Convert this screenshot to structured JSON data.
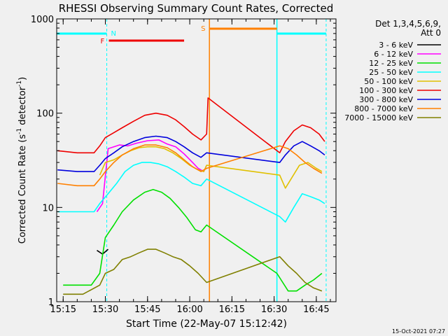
{
  "chart_data": {
    "type": "line",
    "title": "RHESSI Observing Summary Count Rates, Corrected",
    "xlabel": "Start Time (22-May-07 15:12:42)",
    "ylabel": "Corrected Count Rate (s⁻¹ detector⁻¹)",
    "ylabel_main": "Corrected Count Rate (s",
    "ylabel_sup1": "-1",
    "ylabel_mid": " detector",
    "ylabel_sup2": "-1",
    "ylabel_end": ")",
    "yscale": "log",
    "ylim": [
      1,
      1000
    ],
    "xlim": [
      "15:12:42",
      "16:52:00"
    ],
    "x_ticks": [
      "15:15",
      "15:30",
      "15:45",
      "16:00",
      "16:15",
      "16:30",
      "16:45"
    ],
    "y_ticks": [
      "1",
      "10",
      "100",
      "1000"
    ],
    "legend_header": [
      "Det 1,3,4,5,6,9,",
      "Att 0"
    ],
    "footer_date": "15-Oct-2021 07:27",
    "annotations": {
      "night_label": "N",
      "flare_label": "F",
      "saa_label": "S",
      "night_intervals": [
        [
          "15:12:42",
          "15:30:30"
        ],
        [
          "16:31:00",
          "16:48:30"
        ]
      ],
      "flare_interval": [
        "15:30:30",
        "15:58:00"
      ],
      "saa_interval": [
        "16:07:00",
        "16:31:00"
      ]
    },
    "series": [
      {
        "name": "3 - 6 keV",
        "color": "#000000",
        "x": [
          "15:27",
          "15:29",
          "15:31"
        ],
        "y": [
          3.5,
          3.2,
          3.6
        ]
      },
      {
        "name": "6 - 12 keV",
        "color": "#ff00ff",
        "x": [
          "15:27",
          "15:29",
          "15:31",
          "15:33",
          "15:35",
          "15:38",
          "15:41",
          "15:45",
          "15:49",
          "15:52",
          "15:55",
          "15:58",
          "16:01",
          "16:03",
          "16:05",
          "16:06"
        ],
        "y": [
          9,
          11,
          42,
          44,
          46,
          45,
          48,
          51,
          52,
          47,
          44,
          37,
          30,
          26,
          24,
          28
        ]
      },
      {
        "name": "12 - 25 keV",
        "color": "#00e000",
        "x": [
          "15:15",
          "15:20",
          "15:25",
          "15:28",
          "15:30",
          "15:33",
          "15:36",
          "15:40",
          "15:44",
          "15:47",
          "15:50",
          "15:53",
          "15:56",
          "15:59",
          "16:02",
          "16:04",
          "16:06",
          "16:31",
          "16:35",
          "16:38",
          "16:41",
          "16:44",
          "16:47"
        ],
        "y": [
          1.5,
          1.5,
          1.5,
          2.0,
          4.8,
          6.5,
          9.0,
          12.0,
          14.5,
          15.5,
          14.5,
          12.5,
          10.0,
          7.8,
          5.8,
          5.5,
          6.5,
          2.0,
          1.3,
          1.3,
          1.5,
          1.7,
          2.0
        ]
      },
      {
        "name": "25 - 50 keV",
        "color": "#00ffff",
        "x": [
          "15:13",
          "15:20",
          "15:26",
          "15:28",
          "15:31",
          "15:34",
          "15:37",
          "15:40",
          "15:43",
          "15:46",
          "15:49",
          "15:52",
          "15:55",
          "15:58",
          "16:01",
          "16:04",
          "16:06",
          "16:32",
          "16:34",
          "16:37",
          "16:40",
          "16:43",
          "16:46",
          "16:48"
        ],
        "y": [
          9,
          9,
          9,
          11,
          14,
          18,
          24,
          28,
          30,
          30,
          29,
          27,
          24,
          21,
          18,
          17,
          20,
          8,
          7,
          10,
          14,
          13,
          12,
          11
        ]
      },
      {
        "name": "50 - 100 keV",
        "color": "#e0c000",
        "x": [
          "15:28",
          "15:30",
          "15:33",
          "15:36",
          "15:39",
          "15:42",
          "15:45",
          "15:48",
          "15:51",
          "15:54",
          "15:57",
          "16:00",
          "16:03",
          "16:05",
          "16:06",
          "16:32",
          "16:34",
          "16:36",
          "16:39",
          "16:42",
          "16:45",
          "16:47"
        ],
        "y": [
          22,
          30,
          32,
          36,
          40,
          43,
          44,
          44,
          42,
          38,
          33,
          28,
          25,
          24,
          28,
          22,
          16,
          20,
          28,
          30,
          26,
          24
        ]
      },
      {
        "name": "100 - 300 keV",
        "color": "#ee0000",
        "x": [
          "15:13",
          "15:20",
          "15:26",
          "15:28",
          "15:30",
          "15:33",
          "15:36",
          "15:40",
          "15:44",
          "15:48",
          "15:52",
          "15:55",
          "15:58",
          "16:01",
          "16:04",
          "16:06",
          "16:06.5",
          "16:32",
          "16:34",
          "16:37",
          "16:40",
          "16:43",
          "16:46",
          "16:48"
        ],
        "y": [
          40,
          38,
          38,
          45,
          55,
          62,
          70,
          82,
          95,
          100,
          95,
          85,
          72,
          60,
          52,
          60,
          145,
          38,
          50,
          65,
          75,
          70,
          60,
          50
        ]
      },
      {
        "name": "300 - 800 keV",
        "color": "#0000dd",
        "x": [
          "15:13",
          "15:20",
          "15:26",
          "15:28",
          "15:30",
          "15:33",
          "15:36",
          "15:40",
          "15:44",
          "15:48",
          "15:52",
          "15:55",
          "15:58",
          "16:01",
          "16:04",
          "16:06",
          "16:32",
          "16:34",
          "16:37",
          "16:40",
          "16:43",
          "16:46",
          "16:48"
        ],
        "y": [
          25,
          24,
          24,
          28,
          33,
          38,
          44,
          50,
          55,
          57,
          55,
          50,
          44,
          38,
          34,
          38,
          30,
          36,
          45,
          50,
          45,
          40,
          36
        ]
      },
      {
        "name": "800 - 7000 keV",
        "color": "#ff8000",
        "x": [
          "15:13",
          "15:20",
          "15:26",
          "15:28",
          "15:30",
          "15:33",
          "15:36",
          "15:40",
          "15:44",
          "15:48",
          "15:52",
          "15:55",
          "15:58",
          "16:01",
          "16:04",
          "16:06",
          "16:32",
          "16:35",
          "16:38",
          "16:41",
          "16:44",
          "16:47"
        ],
        "y": [
          18,
          17,
          17,
          20,
          24,
          30,
          36,
          42,
          46,
          46,
          43,
          38,
          32,
          27,
          24,
          26,
          45,
          42,
          36,
          30,
          26,
          23
        ]
      },
      {
        "name": "7000 - 15000 keV",
        "color": "#808000",
        "x": [
          "15:15",
          "15:22",
          "15:28",
          "15:30",
          "15:33",
          "15:36",
          "15:39",
          "15:42",
          "15:45",
          "15:48",
          "15:51",
          "15:54",
          "15:57",
          "16:00",
          "16:03",
          "16:06",
          "16:32",
          "16:35",
          "16:38",
          "16:41",
          "16:44",
          "16:47"
        ],
        "y": [
          1.2,
          1.2,
          1.5,
          2.0,
          2.2,
          2.8,
          3.0,
          3.3,
          3.6,
          3.6,
          3.3,
          3.0,
          2.8,
          2.4,
          2.0,
          1.6,
          3.0,
          2.4,
          2.0,
          1.6,
          1.4,
          1.3
        ]
      }
    ]
  }
}
